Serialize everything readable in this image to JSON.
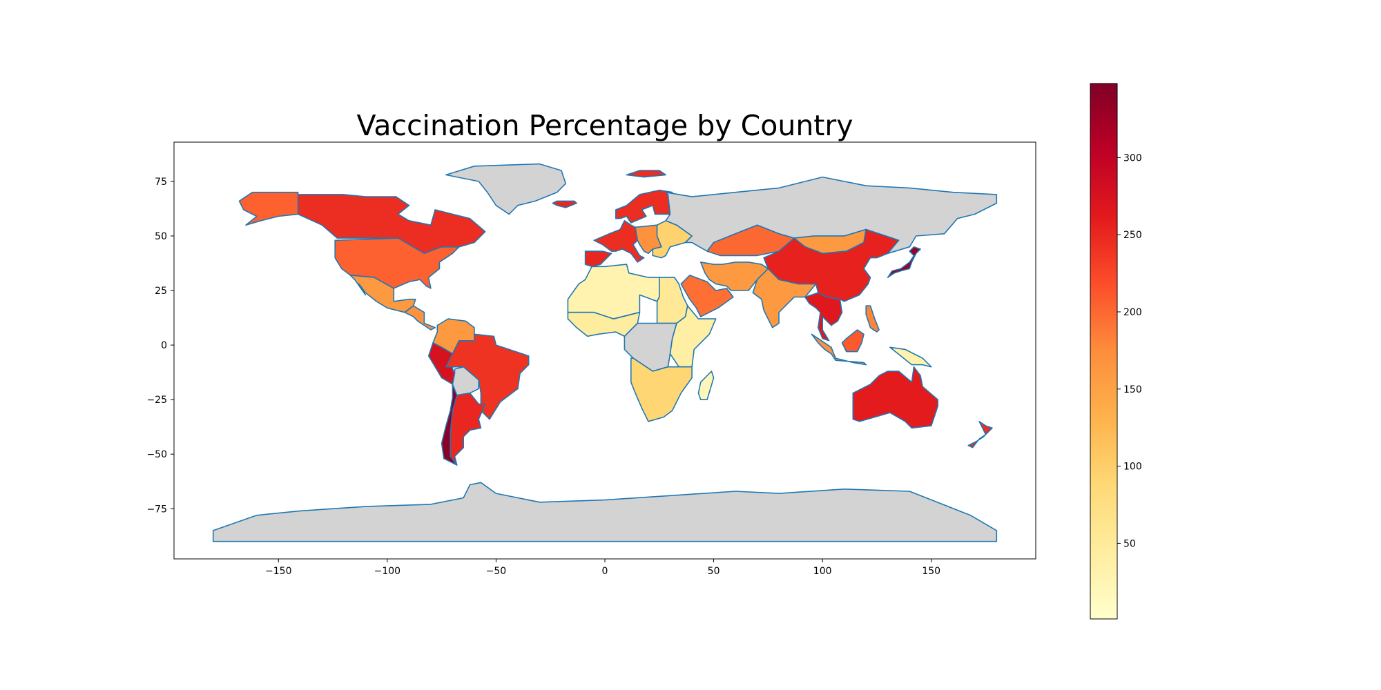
{
  "chart_data": {
    "type": "choropleth",
    "title": "Vaccination Percentage by Country",
    "xlim": [
      -198,
      198
    ],
    "ylim": [
      -98,
      93
    ],
    "xticks": [
      -150,
      -100,
      -50,
      0,
      50,
      100,
      150
    ],
    "yticks": [
      75,
      50,
      25,
      0,
      -25,
      -50,
      -75
    ],
    "xtick_labels": [
      "−150",
      "−100",
      "−50",
      "0",
      "50",
      "100",
      "150"
    ],
    "ytick_labels": [
      "75",
      "50",
      "25",
      "0",
      "−25",
      "−50",
      "−75"
    ],
    "missing_color": "#d3d3d3",
    "border_color": "#1f77b4",
    "colormap": "YlOrRd",
    "colorbar": {
      "min": 1,
      "max": 348,
      "ticks": [
        50,
        100,
        150,
        200,
        250,
        300
      ],
      "tick_labels": [
        "50",
        "100",
        "150",
        "200",
        "250",
        "300"
      ]
    },
    "regions": [
      {
        "name": "Canada",
        "value": 245
      },
      {
        "name": "Alaska (United States)",
        "value": 205
      },
      {
        "name": "United States",
        "value": 205
      },
      {
        "name": "Mexico",
        "value": 160
      },
      {
        "name": "Central America",
        "value": 170
      },
      {
        "name": "Colombia / Venezuela",
        "value": 160
      },
      {
        "name": "Peru / Ecuador",
        "value": 275
      },
      {
        "name": "Brazil",
        "value": 240
      },
      {
        "name": "Bolivia",
        "value": null
      },
      {
        "name": "Argentina",
        "value": 250
      },
      {
        "name": "Chile",
        "value": 340
      },
      {
        "name": "Greenland",
        "value": null
      },
      {
        "name": "Iceland",
        "value": 250
      },
      {
        "name": "Svalbard",
        "value": 245
      },
      {
        "name": "Scandinavia",
        "value": 245
      },
      {
        "name": "Western Europe",
        "value": 245
      },
      {
        "name": "Iberia",
        "value": 250
      },
      {
        "name": "Central Europe",
        "value": 170
      },
      {
        "name": "Eastern Europe",
        "value": 95
      },
      {
        "name": "Russia",
        "value": null
      },
      {
        "name": "North Africa",
        "value": 30
      },
      {
        "name": "Egypt",
        "value": 55
      },
      {
        "name": "West Africa",
        "value": 45
      },
      {
        "name": "Central Africa",
        "value": null
      },
      {
        "name": "East Africa",
        "value": 40
      },
      {
        "name": "Southern Africa",
        "value": 90
      },
      {
        "name": "Madagascar",
        "value": 20
      },
      {
        "name": "Saudi Arabia",
        "value": 195
      },
      {
        "name": "Iran / Central Asia",
        "value": 160
      },
      {
        "name": "Kazakhstan",
        "value": 200
      },
      {
        "name": "Mongolia",
        "value": 160
      },
      {
        "name": "India",
        "value": 160
      },
      {
        "name": "China",
        "value": 255
      },
      {
        "name": "Southeast Asia",
        "value": 265
      },
      {
        "name": "Japan",
        "value": 330
      },
      {
        "name": "Indonesia",
        "value": 170
      },
      {
        "name": "Borneo",
        "value": 210
      },
      {
        "name": "Philippines",
        "value": 180
      },
      {
        "name": "New Guinea",
        "value": 30
      },
      {
        "name": "Australia",
        "value": 260
      },
      {
        "name": "New Zealand",
        "value": 245
      },
      {
        "name": "Antarctica",
        "value": null
      }
    ]
  }
}
